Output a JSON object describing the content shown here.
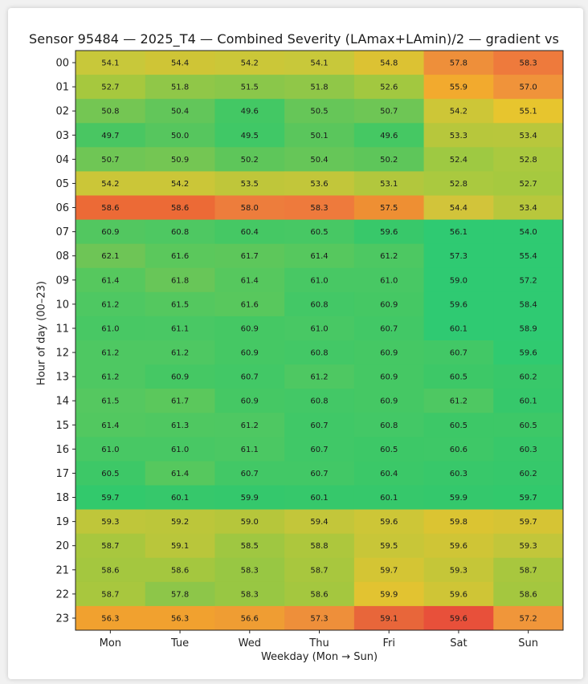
{
  "chart_data": {
    "type": "heatmap",
    "title": "Sensor 95484 — 2025_T4 — Combined Severity (LAmax+LAmin)/2 — gradient vs",
    "xlabel": "Weekday (Mon → Sun)",
    "ylabel": "Hour of day (00–23)",
    "columns": [
      "Mon",
      "Tue",
      "Wed",
      "Thu",
      "Fri",
      "Sat",
      "Sun"
    ],
    "rows": [
      "00",
      "01",
      "02",
      "03",
      "04",
      "05",
      "06",
      "07",
      "08",
      "09",
      "10",
      "11",
      "12",
      "13",
      "14",
      "15",
      "16",
      "17",
      "18",
      "19",
      "20",
      "21",
      "22",
      "23"
    ],
    "values": [
      [
        54.1,
        54.4,
        54.2,
        54.1,
        54.8,
        57.8,
        58.3
      ],
      [
        52.7,
        51.8,
        51.5,
        51.8,
        52.6,
        55.9,
        57.0
      ],
      [
        50.8,
        50.4,
        49.6,
        50.5,
        50.7,
        54.2,
        55.1
      ],
      [
        49.7,
        50.0,
        49.5,
        50.1,
        49.6,
        53.3,
        53.4
      ],
      [
        50.7,
        50.9,
        50.2,
        50.4,
        50.2,
        52.4,
        52.8
      ],
      [
        54.2,
        54.2,
        53.5,
        53.6,
        53.1,
        52.8,
        52.7
      ],
      [
        58.6,
        58.6,
        58.0,
        58.3,
        57.5,
        54.4,
        53.4
      ],
      [
        60.9,
        60.8,
        60.4,
        60.5,
        59.6,
        56.1,
        54.0
      ],
      [
        62.1,
        61.6,
        61.7,
        61.4,
        61.2,
        57.3,
        55.4
      ],
      [
        61.4,
        61.8,
        61.4,
        61.0,
        61.0,
        59.0,
        57.2
      ],
      [
        61.2,
        61.5,
        61.6,
        60.8,
        60.9,
        59.6,
        58.4
      ],
      [
        61.0,
        61.1,
        60.9,
        61.0,
        60.7,
        60.1,
        58.9
      ],
      [
        61.2,
        61.2,
        60.9,
        60.8,
        60.9,
        60.7,
        59.6
      ],
      [
        61.2,
        60.9,
        60.7,
        61.2,
        60.9,
        60.5,
        60.2
      ],
      [
        61.5,
        61.7,
        60.9,
        60.8,
        60.9,
        61.2,
        60.1
      ],
      [
        61.4,
        61.3,
        61.2,
        60.7,
        60.8,
        60.5,
        60.5
      ],
      [
        61.0,
        61.0,
        61.1,
        60.7,
        60.5,
        60.6,
        60.3
      ],
      [
        60.5,
        61.4,
        60.7,
        60.7,
        60.4,
        60.3,
        60.2
      ],
      [
        59.7,
        60.1,
        59.9,
        60.1,
        60.1,
        59.9,
        59.7
      ],
      [
        59.3,
        59.2,
        59.0,
        59.4,
        59.6,
        59.8,
        59.7
      ],
      [
        58.7,
        59.1,
        58.5,
        58.8,
        59.5,
        59.6,
        59.3
      ],
      [
        58.6,
        58.6,
        58.3,
        58.7,
        59.7,
        59.3,
        58.7
      ],
      [
        58.7,
        57.8,
        58.3,
        58.6,
        59.9,
        59.6,
        58.6
      ],
      [
        56.3,
        56.3,
        56.6,
        57.3,
        59.1,
        59.6,
        57.2
      ]
    ],
    "cell_colors": [
      [
        "#c8c83a",
        "#cfc536",
        "#cbc738",
        "#c8c83a",
        "#dcc233",
        "#ee8f3a",
        "#ee7a3c"
      ],
      [
        "#a6c83e",
        "#90c748",
        "#8ac74a",
        "#90c748",
        "#a2c840",
        "#f2aa2e",
        "#f0933a"
      ],
      [
        "#74c653",
        "#62c65a",
        "#43c864",
        "#66c658",
        "#6ec655",
        "#cdc637",
        "#e7c52e"
      ],
      [
        "#49c662",
        "#56c65e",
        "#40c866",
        "#5ac65c",
        "#45c863",
        "#b7c73c",
        "#b8c73c"
      ],
      [
        "#6fc655",
        "#74c653",
        "#5ec65a",
        "#66c658",
        "#5ec65a",
        "#9ec942",
        "#aac93f"
      ],
      [
        "#cbc638",
        "#cbc638",
        "#bfc63a",
        "#c2c63a",
        "#b2c73d",
        "#aac93f",
        "#a6c93f"
      ],
      [
        "#ec6a36",
        "#ec6a36",
        "#ed7d3c",
        "#ee7a3c",
        "#ee8f33",
        "#d2c43a",
        "#b8c73c"
      ],
      [
        "#52c760",
        "#4ec862",
        "#45c864",
        "#47c864",
        "#38c86a",
        "#2fca72",
        "#2fca72"
      ],
      [
        "#6ec556",
        "#5bc85c",
        "#5dc75b",
        "#56c85e",
        "#4dc862",
        "#2fca72",
        "#2fca72"
      ],
      [
        "#56c85e",
        "#68c658",
        "#56c85e",
        "#48c864",
        "#48c864",
        "#2fca72",
        "#2fca72"
      ],
      [
        "#4ec862",
        "#54c85f",
        "#58c85d",
        "#43c866",
        "#45c864",
        "#2fca72",
        "#2fca72"
      ],
      [
        "#48c864",
        "#49c864",
        "#45c864",
        "#48c864",
        "#42c866",
        "#2fca72",
        "#2fca72"
      ],
      [
        "#4ec862",
        "#4ec862",
        "#45c864",
        "#43c866",
        "#45c864",
        "#42c866",
        "#30ca70"
      ],
      [
        "#4ec862",
        "#45c864",
        "#42c866",
        "#4ec862",
        "#45c864",
        "#3dc867",
        "#38c86a"
      ],
      [
        "#55c860",
        "#5bc85c",
        "#45c864",
        "#43c866",
        "#45c864",
        "#4ec862",
        "#36c86b"
      ],
      [
        "#52c860",
        "#4fc861",
        "#4ec862",
        "#40c867",
        "#43c866",
        "#3dc867",
        "#3dc867"
      ],
      [
        "#48c864",
        "#48c864",
        "#4bc863",
        "#40c867",
        "#3dc867",
        "#3ec867",
        "#38c86a"
      ],
      [
        "#3dc867",
        "#56c85e",
        "#42c866",
        "#42c866",
        "#3bc868",
        "#38c86a",
        "#36c86b"
      ],
      [
        "#32c96c",
        "#36c86b",
        "#34c86c",
        "#36c86b",
        "#36c86b",
        "#34c86c",
        "#32c96c"
      ],
      [
        "#bfc63a",
        "#bcc63a",
        "#b6c63b",
        "#c3c63a",
        "#cdc637",
        "#dbc432",
        "#d6c434"
      ],
      [
        "#a8c73e",
        "#b9c63b",
        "#9fc741",
        "#adc73d",
        "#c8c638",
        "#cfc536",
        "#c2c63a"
      ],
      [
        "#a4c73f",
        "#a4c73f",
        "#98c743",
        "#a8c73e",
        "#d4c534",
        "#c5c638",
        "#a8c73e"
      ],
      [
        "#a8c73e",
        "#8dc649",
        "#98c743",
        "#a4c73f",
        "#e2c331",
        "#cfc536",
        "#a4c73f"
      ],
      [
        "#f1a12f",
        "#f1a12f",
        "#ef9d33",
        "#ee8f3a",
        "#e8663a",
        "#e8503a",
        "#f0963a"
      ]
    ]
  }
}
